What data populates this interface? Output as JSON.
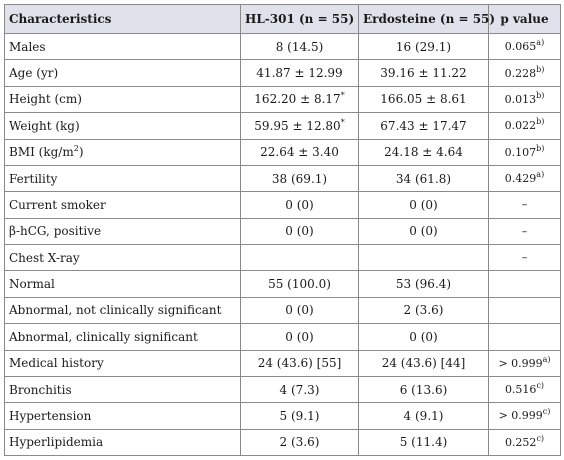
{
  "table": {
    "headers": [
      "Characteristics",
      "HL-301 (n = 55)",
      "Erdosteine (n = 55)",
      "p value"
    ],
    "rows": [
      {
        "label": "Males",
        "hl": "8 (14.5)",
        "hl_mark": "",
        "erd": "16 (29.1)",
        "p": "0.065",
        "p_sup": "a)"
      },
      {
        "label": "Age (yr)",
        "hl": "41.87 ± 12.99",
        "hl_mark": "",
        "erd": "39.16 ± 11.22",
        "p": "0.228",
        "p_sup": "b)"
      },
      {
        "label": "Height (cm)",
        "hl": "162.20 ± 8.17",
        "hl_mark": "*",
        "erd": "166.05 ± 8.61",
        "p": "0.013",
        "p_sup": "b)"
      },
      {
        "label": "Weight (kg)",
        "hl": "59.95 ± 12.80",
        "hl_mark": "*",
        "erd": "67.43 ± 17.47",
        "p": "0.022",
        "p_sup": "b)"
      },
      {
        "label": "BMI (kg/m",
        "label_sup": "2",
        "label_tail": ")",
        "hl": "22.64 ± 3.40",
        "hl_mark": "",
        "erd": "24.18 ± 4.64",
        "p": "0.107",
        "p_sup": "b)"
      },
      {
        "label": "Fertility",
        "hl": "38 (69.1)",
        "hl_mark": "",
        "erd": "34 (61.8)",
        "p": "0.429",
        "p_sup": "a)"
      },
      {
        "label": "Current smoker",
        "hl": "0 (0)",
        "hl_mark": "",
        "erd": "0 (0)",
        "p": "–",
        "p_sup": ""
      },
      {
        "label": "β-hCG, positive",
        "hl": "0 (0)",
        "hl_mark": "",
        "erd": "0 (0)",
        "p": "–",
        "p_sup": ""
      },
      {
        "label": "Chest X-ray",
        "hl": "",
        "hl_mark": "",
        "erd": "",
        "p": "–",
        "p_sup": ""
      },
      {
        "label": "Normal",
        "hl": "55 (100.0)",
        "hl_mark": "",
        "erd": "53 (96.4)",
        "p": "",
        "p_sup": ""
      },
      {
        "label": "Abnormal, not clinically significant",
        "hl": "0 (0)",
        "hl_mark": "",
        "erd": "2 (3.6)",
        "p": "",
        "p_sup": ""
      },
      {
        "label": "Abnormal, clinically significant",
        "hl": "0 (0)",
        "hl_mark": "",
        "erd": "0 (0)",
        "p": "",
        "p_sup": ""
      },
      {
        "label": "Medical history",
        "hl": "24 (43.6) [55]",
        "hl_mark": "",
        "erd": "24 (43.6) [44]",
        "p": "> 0.999",
        "p_sup": "a)"
      },
      {
        "label": "Bronchitis",
        "hl": "4 (7.3)",
        "hl_mark": "",
        "erd": "6 (13.6)",
        "p": "0.516",
        "p_sup": "c)"
      },
      {
        "label": "Hypertension",
        "hl": "5 (9.1)",
        "hl_mark": "",
        "erd": "4 (9.1)",
        "p": "> 0.999",
        "p_sup": "c)"
      },
      {
        "label": "Hyperlipidemia",
        "hl": "2 (3.6)",
        "hl_mark": "",
        "erd": "5 (11.4)",
        "p": "0.252",
        "p_sup": "c)"
      }
    ]
  }
}
